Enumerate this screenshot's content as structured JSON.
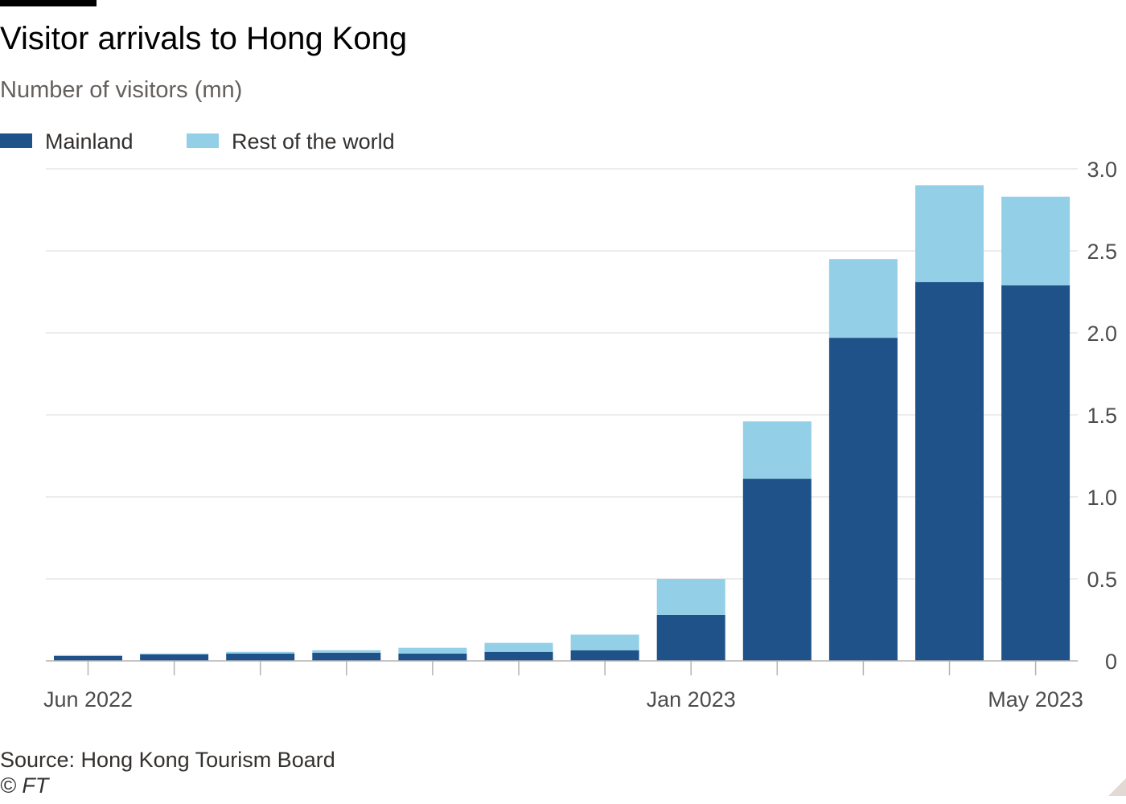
{
  "chart_data": {
    "type": "bar",
    "stacked": true,
    "title": "Visitor arrivals to Hong Kong",
    "subtitle": "Number of visitors (mn)",
    "source": "Source: Hong Kong Tourism Board",
    "copyright": "© FT",
    "categories": [
      "Jun 2022",
      "Jul 2022",
      "Aug 2022",
      "Sep 2022",
      "Oct 2022",
      "Nov 2022",
      "Dec 2022",
      "Jan 2023",
      "Feb 2023",
      "Mar 2023",
      "Apr 2023",
      "May 2023"
    ],
    "x_tick_labels": [
      {
        "index": 0,
        "label": "Jun 2022"
      },
      {
        "index": 7,
        "label": "Jan 2023"
      },
      {
        "index": 11,
        "label": "May 2023"
      }
    ],
    "series": [
      {
        "name": "Mainland",
        "color": "#1f5289",
        "values": [
          0.03,
          0.04,
          0.045,
          0.05,
          0.045,
          0.055,
          0.065,
          0.28,
          1.11,
          1.97,
          2.31,
          2.29
        ]
      },
      {
        "name": "Rest of the world",
        "color": "#93cfe6",
        "values": [
          0.005,
          0.005,
          0.01,
          0.015,
          0.035,
          0.055,
          0.095,
          0.22,
          0.35,
          0.48,
          0.59,
          0.54
        ]
      }
    ],
    "ylim": [
      0,
      3.0
    ],
    "y_ticks": [
      {
        "value": 0,
        "label": "0"
      },
      {
        "value": 0.5,
        "label": "0.5"
      },
      {
        "value": 1.0,
        "label": "1.0"
      },
      {
        "value": 1.5,
        "label": "1.5"
      },
      {
        "value": 2.0,
        "label": "2.0"
      },
      {
        "value": 2.5,
        "label": "2.5"
      },
      {
        "value": 3.0,
        "label": "3.0"
      }
    ],
    "y_axis_side": "right",
    "grid": true,
    "legend_position": "top-left",
    "colors": {
      "grid": "#e6e6e6",
      "axis": "#b3b3b3",
      "tick_text": "#4d4d4d"
    }
  }
}
